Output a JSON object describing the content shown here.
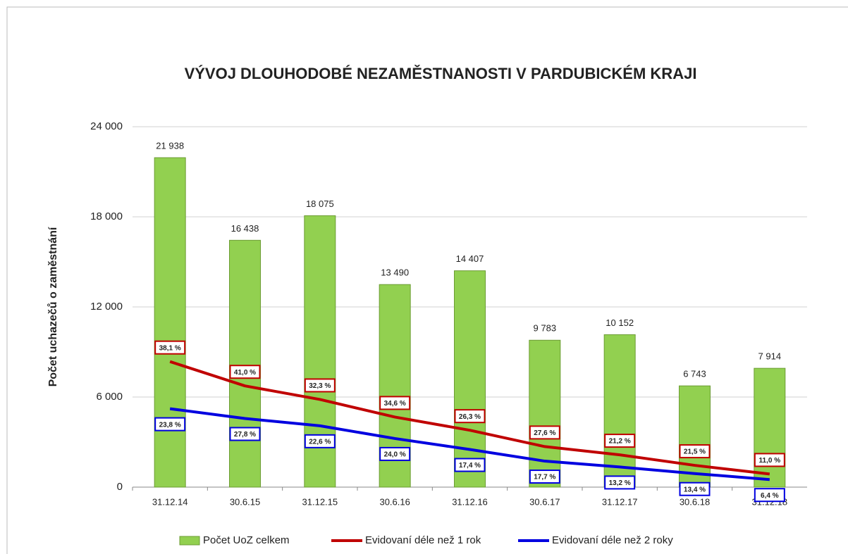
{
  "chart_data": {
    "type": "bar",
    "title": "VÝVOJ DLOUHODOBÉ NEZAMĚSTNANOSTI V PARDUBICKÉM KRAJI",
    "y_label": "Počet uchazečů o zaměstnání",
    "categories": [
      "31.12.14",
      "30.6.15",
      "31.12.15",
      "30.6.16",
      "31.12.16",
      "30.6.17",
      "31.12.17",
      "30.6.18",
      "31.12.18"
    ],
    "series": [
      {
        "name": "Počet UoZ celkem",
        "type": "bar",
        "color": "#92d050",
        "values": [
          21938,
          16438,
          18075,
          13490,
          14407,
          9783,
          10152,
          6743,
          7914
        ],
        "value_labels": [
          "21 938",
          "16 438",
          "18 075",
          "13 490",
          "14 407",
          "9 783",
          "10 152",
          "6 743",
          "7 914"
        ]
      },
      {
        "name": "Evidovaní déle než 1 rok",
        "type": "line",
        "color": "#c00000",
        "values": [
          8358,
          6740,
          5838,
          4668,
          3789,
          2700,
          2152,
          1450,
          871
        ],
        "shares": [
          38.1,
          41.0,
          32.3,
          34.6,
          26.3,
          27.6,
          21.2,
          21.5,
          11.0
        ],
        "share_labels": [
          "38,1 %",
          "41,0 %",
          "32,3 %",
          "34,6 %",
          "26,3 %",
          "27,6 %",
          "21,2 %",
          "21,5 %",
          "11,0 %"
        ]
      },
      {
        "name": "Evidovaní déle než 2 roky",
        "type": "line",
        "color": "#0000e0",
        "values": [
          5221,
          4570,
          4085,
          3238,
          2507,
          1732,
          1340,
          904,
          506
        ],
        "shares": [
          23.8,
          27.8,
          22.6,
          24.0,
          17.4,
          17.7,
          13.2,
          13.4,
          6.4
        ],
        "share_labels": [
          "23,8 %",
          "27,8 %",
          "22,6 %",
          "24,0 %",
          "17,4 %",
          "17,7 %",
          "13,2 %",
          "13,4 %",
          "6,4 %"
        ]
      }
    ],
    "ylim": [
      0,
      24000
    ],
    "yticks": [
      {
        "value": 0,
        "label": "0"
      },
      {
        "value": 6000,
        "label": "6 000"
      },
      {
        "value": 12000,
        "label": "12 000"
      },
      {
        "value": 18000,
        "label": "18 000"
      },
      {
        "value": 24000,
        "label": "24 000"
      }
    ],
    "grid": true,
    "legend": "bottom"
  }
}
